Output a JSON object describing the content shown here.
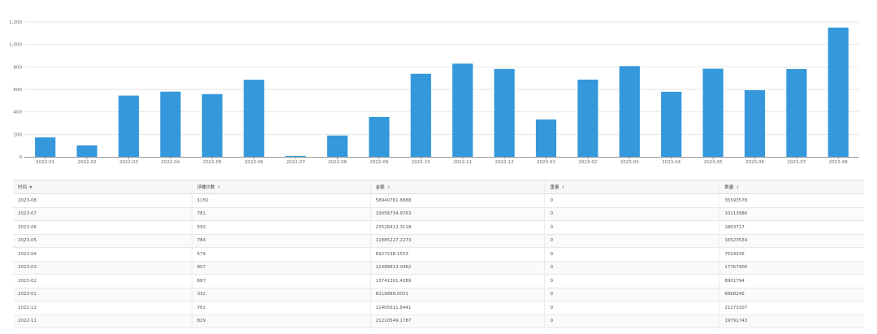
{
  "chart_data": {
    "type": "bar",
    "categories": [
      "2022-01",
      "2022-02",
      "2022-03",
      "2022-04",
      "2022-05",
      "2022-06",
      "2022-07",
      "2022-08",
      "2022-09",
      "2022-10",
      "2022-11",
      "2022-12",
      "2023-01",
      "2023-02",
      "2023-03",
      "2023-04",
      "2023-05",
      "2023-06",
      "2023-07",
      "2023-08"
    ],
    "values": [
      173,
      102,
      545,
      580,
      558,
      686,
      7,
      190,
      355,
      739,
      829,
      782,
      332,
      687,
      807,
      579,
      784,
      593,
      781,
      1150
    ],
    "y_ticks": [
      "0",
      "200",
      "400",
      "600",
      "800",
      "1,000",
      "1,200"
    ],
    "ylim": [
      0,
      1200
    ],
    "grid": true,
    "legend": "none",
    "bar_color": "#3498db"
  },
  "table": {
    "columns": [
      {
        "label": "时间",
        "sort_icon": "sort-desc-icon",
        "sort_glyph": "▼"
      },
      {
        "label": "涉嫌次数",
        "sort_icon": "sort-icon",
        "sort_glyph": "⇕"
      },
      {
        "label": "金额",
        "sort_icon": "sort-icon",
        "sort_glyph": "⇕"
      },
      {
        "label": "重量",
        "sort_icon": "sort-icon",
        "sort_glyph": "⇕"
      },
      {
        "label": "数量",
        "sort_icon": "sort-icon",
        "sort_glyph": "⇕"
      }
    ],
    "rows": [
      [
        "2023-08",
        "1150",
        "58940781.8888",
        "0",
        "35593578"
      ],
      [
        "2023-07",
        "781",
        "19056734.9763",
        "0",
        "10113986"
      ],
      [
        "2023-06",
        "593",
        "23528412.3118",
        "0",
        "2863717"
      ],
      [
        "2023-05",
        "784",
        "11885227.2273",
        "0",
        "16523534"
      ],
      [
        "2023-04",
        "579",
        "6927238.1553",
        "0",
        "7524936"
      ],
      [
        "2023-03",
        "807",
        "11488813.0462",
        "0",
        "17767906"
      ],
      [
        "2023-02",
        "687",
        "13741301.4389",
        "0",
        "8901794"
      ],
      [
        "2023-01",
        "332",
        "8219888.0031",
        "0",
        "6868246"
      ],
      [
        "2022-12",
        "782",
        "11405611.8441",
        "0",
        "21273207"
      ],
      [
        "2022-11",
        "829",
        "21210549.1787",
        "0",
        "19791743"
      ]
    ]
  }
}
